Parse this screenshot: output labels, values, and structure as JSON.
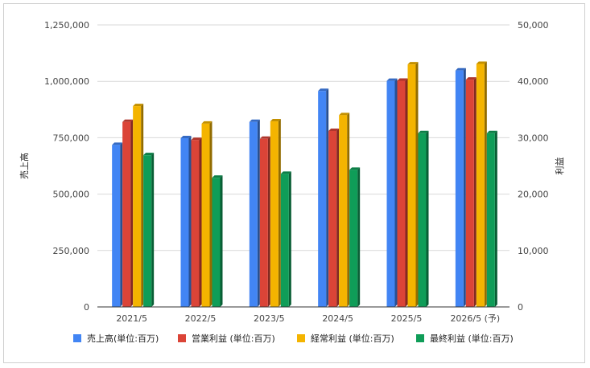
{
  "chart_data": {
    "type": "bar",
    "categories": [
      "2021/5",
      "2022/5",
      "2023/5",
      "2024/5",
      "2025/5",
      "2026/5 (予)"
    ],
    "left_axis": {
      "label": "売上高",
      "ylim": [
        0,
        1250000
      ],
      "ticks": [
        "0",
        "250,000",
        "500,000",
        "750,000",
        "1,000,000",
        "1,250,000"
      ]
    },
    "right_axis": {
      "label": "利益",
      "ylim": [
        0,
        50000
      ],
      "ticks": [
        "0",
        "10,000",
        "20,000",
        "30,000",
        "40,000",
        "50,000"
      ]
    },
    "series": [
      {
        "name": "売上高(単位:百万)",
        "axis": "left",
        "color": "#4285f4",
        "values": [
          718000,
          748000,
          820000,
          957000,
          1002000,
          1048000
        ]
      },
      {
        "name": "営業利益 (単位:百万)",
        "axis": "right",
        "color": "#db4437",
        "values": [
          32800,
          29600,
          29800,
          31200,
          40100,
          40300
        ]
      },
      {
        "name": "経常利益 (単位:百万)",
        "axis": "right",
        "color": "#f4b400",
        "values": [
          35600,
          32500,
          32900,
          34000,
          43000,
          43100
        ]
      },
      {
        "name": "最終利益 (単位:百万)",
        "axis": "right",
        "color": "#0f9d58",
        "values": [
          26900,
          22900,
          23600,
          24300,
          30800,
          30800
        ]
      }
    ],
    "grid": true,
    "legend": "bottom"
  }
}
